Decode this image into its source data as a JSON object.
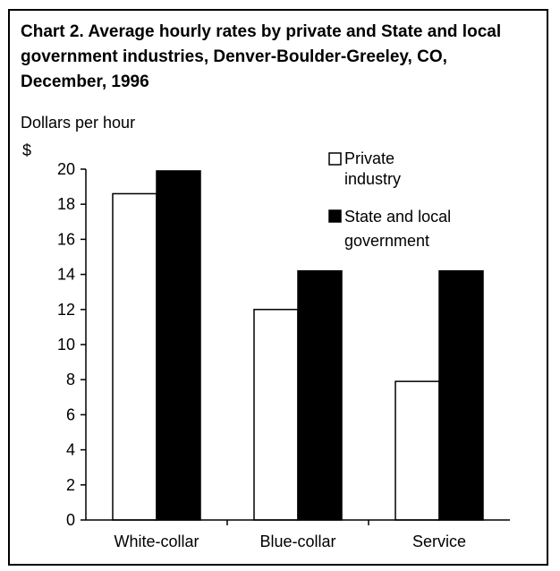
{
  "title": "Chart 2. Average hourly rates by private and State and local government industries, Denver-Boulder-Greeley, CO, December, 1996",
  "ylabel": "Dollars per hour",
  "yunit": "$",
  "legend": {
    "private": [
      "Private",
      "industry"
    ],
    "government": [
      "State and local",
      "government"
    ]
  },
  "colors": {
    "private": "#ffffff",
    "government": "#000000"
  },
  "chart_data": {
    "type": "bar",
    "categories": [
      "White-collar",
      "Blue-collar",
      "Service"
    ],
    "series": [
      {
        "name": "Private industry",
        "values": [
          18.6,
          12.0,
          7.9
        ]
      },
      {
        "name": "State and local government",
        "values": [
          19.9,
          14.2,
          14.2
        ]
      }
    ],
    "ylim": [
      0,
      20
    ],
    "yticks": [
      0,
      2,
      4,
      6,
      8,
      10,
      12,
      14,
      16,
      18,
      20
    ],
    "grid": false,
    "legend_position": "top-right"
  }
}
